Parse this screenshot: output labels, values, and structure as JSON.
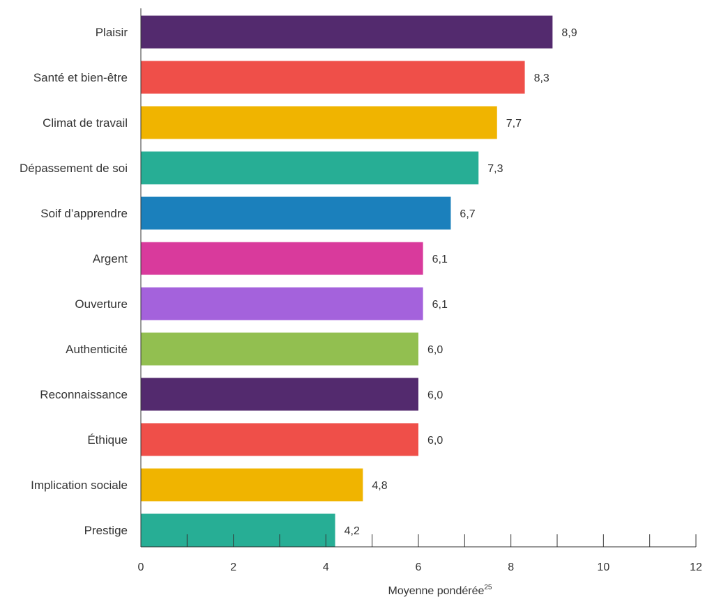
{
  "chart_data": {
    "type": "bar",
    "orientation": "horizontal",
    "categories": [
      "Plaisir",
      "Santé et bien-être",
      "Climat de travail",
      "Dépassement de soi",
      "Soif d’apprendre",
      "Argent",
      "Ouverture",
      "Authenticité",
      "Reconnaissance",
      "Éthique",
      "Implication sociale",
      "Prestige"
    ],
    "values": [
      8.9,
      8.3,
      7.7,
      7.3,
      6.7,
      6.1,
      6.1,
      6.0,
      6.0,
      6.0,
      4.8,
      4.2
    ],
    "value_labels": [
      "8,9",
      "8,3",
      "7,7",
      "7,3",
      "6,7",
      "6,1",
      "6,1",
      "6,0",
      "6,0",
      "6,0",
      "4,8",
      "4,2"
    ],
    "colors": [
      "#532a6e",
      "#ef4f49",
      "#f0b400",
      "#27ae95",
      "#1b80bc",
      "#d93a9c",
      "#a462dc",
      "#92bf50",
      "#532a6e",
      "#ef4f49",
      "#f0b400",
      "#27ae95"
    ],
    "xlim": [
      0,
      12
    ],
    "x_ticks": [
      0,
      2,
      4,
      6,
      8,
      10,
      12
    ],
    "x_tick_labels": [
      "0",
      "2",
      "4",
      "6",
      "8",
      "10",
      "12"
    ],
    "x_minor_ticks": [
      1,
      3,
      5,
      7,
      9,
      11
    ],
    "xlabel": "Moyenne pondérée",
    "xlabel_superscript": "25",
    "title": "",
    "grid": false
  }
}
